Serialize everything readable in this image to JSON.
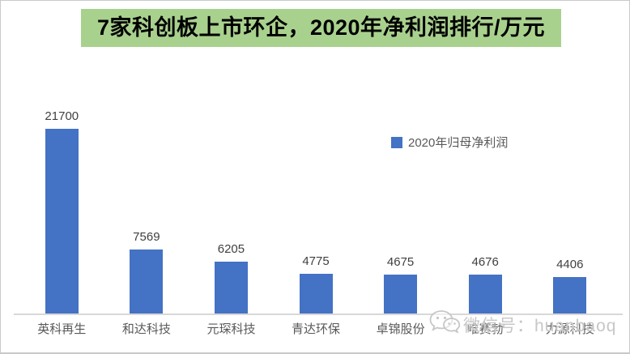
{
  "title": "7家科创板上市环企，2020年净利润排行/万元",
  "legend": {
    "label": "2020年归母净利润",
    "marker_color": "#4472C4"
  },
  "watermark": {
    "icon": "wechat-icon",
    "text": "微信号：huanbaoq"
  },
  "colors": {
    "bar": "#4472C4",
    "title_background": "#A9D18E",
    "title_text": "#000000",
    "value_label": "#404040",
    "category_label": "#595959",
    "legend_text": "#595959",
    "axis_line": "#D8D8D8",
    "watermark_text": "#C7C7C7",
    "frame_border": "#C9C9C9"
  },
  "chart_data": {
    "type": "bar",
    "title": "7家科创板上市环企，2020年净利润排行/万元",
    "categories": [
      "英科再生",
      "和达科技",
      "元琛科技",
      "青达环保",
      "卓锦股份",
      "唯赛勃",
      "力源科技"
    ],
    "values": [
      21700,
      7569,
      6205,
      4775,
      4675,
      4676,
      4406
    ],
    "series": [
      {
        "name": "2020年归母净利润",
        "values": [
          21700,
          7569,
          6205,
          4775,
          4675,
          4676,
          4406
        ]
      }
    ],
    "unit": "万元",
    "xlabel": "",
    "ylabel": "",
    "ylim": [
      0,
      21700
    ],
    "grid": false,
    "data_labels": true,
    "legend_position": "center-right-above-bars",
    "bar_color": "#4472C4"
  }
}
